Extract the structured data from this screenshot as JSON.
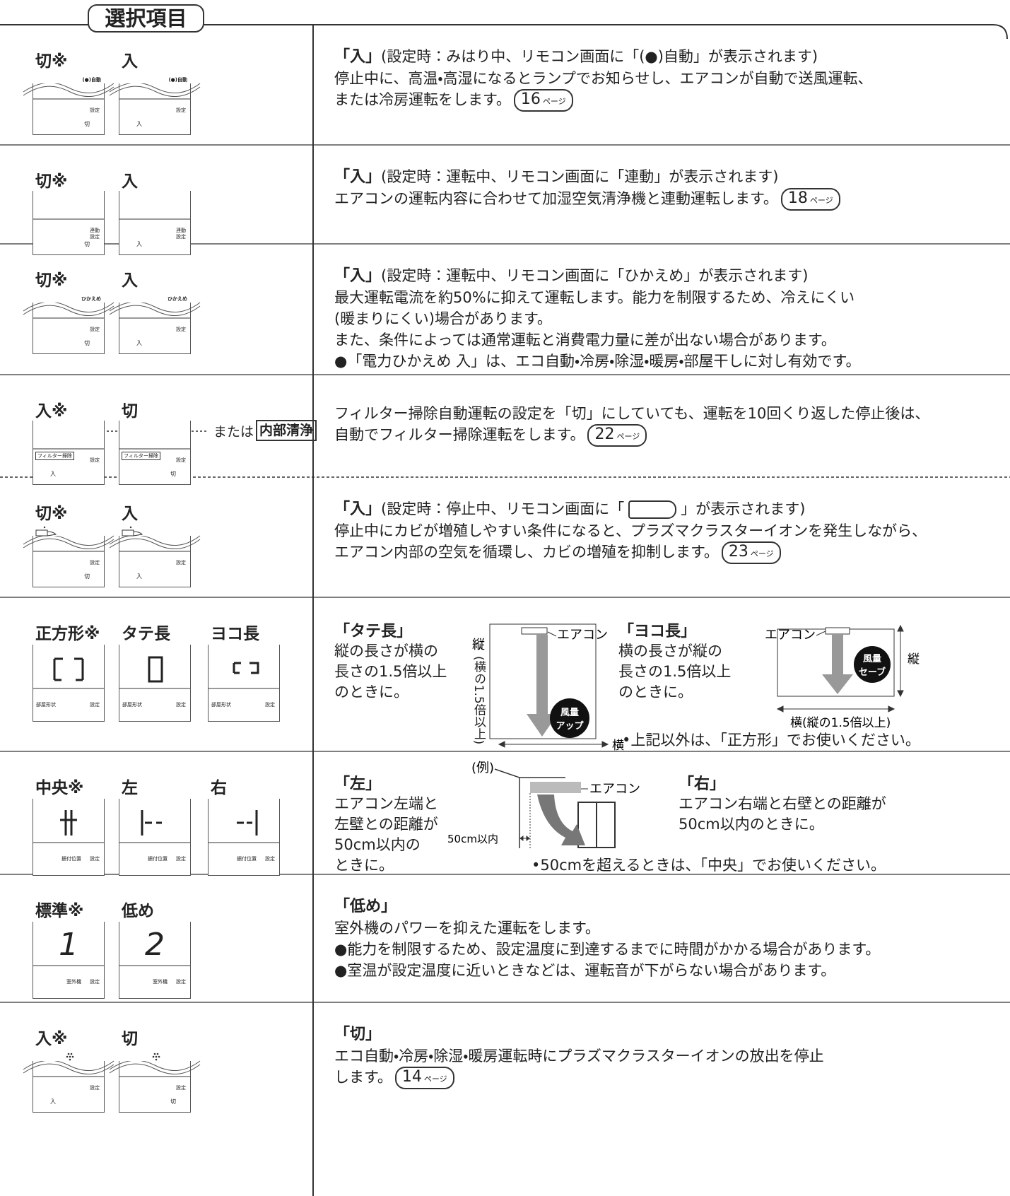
{
  "header": {
    "title": "選択項目"
  },
  "rows": [
    {
      "options": [
        {
          "label": "切※",
          "screen": {
            "top": "(●)自動",
            "right": [
              "設定"
            ],
            "state": "切"
          }
        },
        {
          "label": "入",
          "screen": {
            "top": "(●)自動",
            "right": [
              "設定"
            ],
            "state": "入"
          }
        }
      ],
      "description": {
        "heading": "「入」",
        "subtitle": "(設定時：みはり中、リモコン画面に「(●)自動」が表示されます)",
        "lines": [
          "停止中に、高温・高湿になるとランプでお知らせし、エアコンが自動で送風運転、",
          "または冷房運転をします。"
        ],
        "ref": {
          "page": "16",
          "unit": "ページ"
        }
      }
    },
    {
      "options": [
        {
          "label": "切※",
          "screen": {
            "right": [
              "連動",
              "設定"
            ],
            "state": "切"
          }
        },
        {
          "label": "入",
          "screen": {
            "right": [
              "連動",
              "設定"
            ],
            "state": "入"
          }
        }
      ],
      "description": {
        "heading": "「入」",
        "subtitle": "(設定時：運転中、リモコン画面に「連動」が表示されます)",
        "lines": [
          "エアコンの運転内容に合わせて加湿空気清浄機と連動運転します。"
        ],
        "ref": {
          "page": "18",
          "unit": "ページ"
        }
      }
    },
    {
      "options": [
        {
          "label": "切※",
          "screen": {
            "top": "ひかえめ",
            "right": [
              "設定"
            ],
            "state": "切"
          }
        },
        {
          "label": "入",
          "screen": {
            "top": "ひかえめ",
            "right": [
              "設定"
            ],
            "state": "入"
          }
        }
      ],
      "description": {
        "heading": "「入」",
        "subtitle": "(設定時：運転中、リモコン画面に「ひかえめ」が表示されます)",
        "lines": [
          "最大運転電流を約50%に抑えて運転します。能力を制限するため、冷えにくい",
          "(暖まりにくい)場合があります。",
          "また、条件によっては通常運転と消費電力量に差が出ない場合があります。",
          "●「電力ひかえめ 入」は、エコ自動・冷房・除湿・暖房・部屋干しに対し有効です。"
        ]
      }
    },
    {
      "options": [
        {
          "label": "入※",
          "screen": {
            "box": "フィルター掃除",
            "right": [
              "設定"
            ],
            "state": "入"
          }
        },
        {
          "label": "切",
          "screen": {
            "box": "フィルター掃除",
            "right": [
              "設定"
            ],
            "state": "切"
          }
        }
      ],
      "screen_note": {
        "text": "または",
        "box": "内部清浄"
      },
      "description": {
        "lines": [
          "フィルター掃除自動運転の設定を「切」にしていても、運転を10回くり返した停止後は、",
          "自動でフィルター掃除運転をします。"
        ],
        "ref": {
          "page": "22",
          "unit": "ページ"
        }
      }
    },
    {
      "options": [
        {
          "label": "切※",
          "screen": {
            "right": [
              "設定"
            ],
            "state": "切"
          }
        },
        {
          "label": "入",
          "screen": {
            "right": [
              "設定"
            ],
            "state": "入"
          }
        }
      ],
      "description": {
        "heading": "「入」",
        "subtitle_before": "(設定時：停止中、リモコン画面に「",
        "subtitle_after": "」が表示されます)",
        "lines": [
          "停止中にカビが増殖しやすい条件になると、プラズマクラスターイオンを発生しながら、",
          "エアコン内部の空気を循環し、カビの増殖を抑制します。"
        ],
        "ref": {
          "page": "23",
          "unit": "ページ"
        }
      }
    },
    {
      "options": [
        {
          "label": "正方形※",
          "screen": {
            "labels": [
              "部屋形状",
              "設定"
            ]
          }
        },
        {
          "label": "タテ長",
          "screen": {
            "labels": [
              "部屋形状",
              "設定"
            ]
          }
        },
        {
          "label": "ヨコ長",
          "screen": {
            "labels": [
              "部屋形状",
              "設定"
            ]
          }
        }
      ],
      "description": {
        "left": {
          "heading": "「タテ長」",
          "lines": [
            "縦の長さが横の",
            "長さの1.5倍以上",
            "のときに。"
          ],
          "diagram": {
            "vertical": "縦",
            "vertical_note": "(横の1.5倍以上)",
            "unit": "エアコン",
            "badge": [
              "風量",
              "アップ"
            ],
            "horizontal": "横"
          }
        },
        "right": {
          "heading": "「ヨコ長」",
          "lines": [
            "横の長さが縦の",
            "長さの1.5倍以上",
            "のときに。"
          ],
          "diagram": {
            "unit": "エアコン",
            "badge": [
              "風量",
              "セーブ"
            ],
            "vertical": "縦",
            "horizontal": "横(縦の1.5倍以上)"
          }
        },
        "note": "•上記以外は、「正方形」でお使いください。"
      }
    },
    {
      "options": [
        {
          "label": "中央※",
          "screen": {
            "labels": [
              "据付位置",
              "設定"
            ]
          }
        },
        {
          "label": "左",
          "screen": {
            "labels": [
              "据付位置",
              "設定"
            ]
          }
        },
        {
          "label": "右",
          "screen": {
            "labels": [
              "据付位置",
              "設定"
            ]
          }
        }
      ],
      "description": {
        "left": {
          "heading": "「左」",
          "lines": [
            "エアコン左端と",
            "左壁との距離が",
            "50cm以内の",
            "ときに。"
          ]
        },
        "diagram": {
          "example": "(例)",
          "unit": "エアコン",
          "distance": "50cm以内"
        },
        "right": {
          "heading": "「右」",
          "lines": [
            "エアコン右端と右壁との距離が",
            "50cm以内のときに。"
          ]
        },
        "note": "•50cmを超えるときは、「中央」でお使いください。"
      }
    },
    {
      "options": [
        {
          "label": "標準※",
          "screen": {
            "digit": "1",
            "labels": [
              "室外機",
              "設定"
            ]
          }
        },
        {
          "label": "低め",
          "screen": {
            "digit": "2",
            "labels": [
              "室外機",
              "設定"
            ]
          }
        }
      ],
      "description": {
        "heading": "「低め」",
        "lines": [
          "室外機のパワーを抑えた運転をします。",
          "●能力を制限するため、設定温度に到達するまでに時間がかかる場合があります。",
          "●室温が設定温度に近いときなどは、運転音が下がらない場合があります。"
        ]
      }
    },
    {
      "options": [
        {
          "label": "入※",
          "screen": {
            "right": [
              "設定"
            ],
            "state": "入"
          }
        },
        {
          "label": "切",
          "screen": {
            "right": [
              "設定"
            ],
            "state": "切"
          }
        }
      ],
      "description": {
        "heading": "「切」",
        "lines": [
          "エコ自動・冷房・除湿・暖房運転時にプラズマクラスターイオンの放出を停止",
          "します。"
        ],
        "ref": {
          "page": "14",
          "unit": "ページ"
        }
      }
    }
  ]
}
